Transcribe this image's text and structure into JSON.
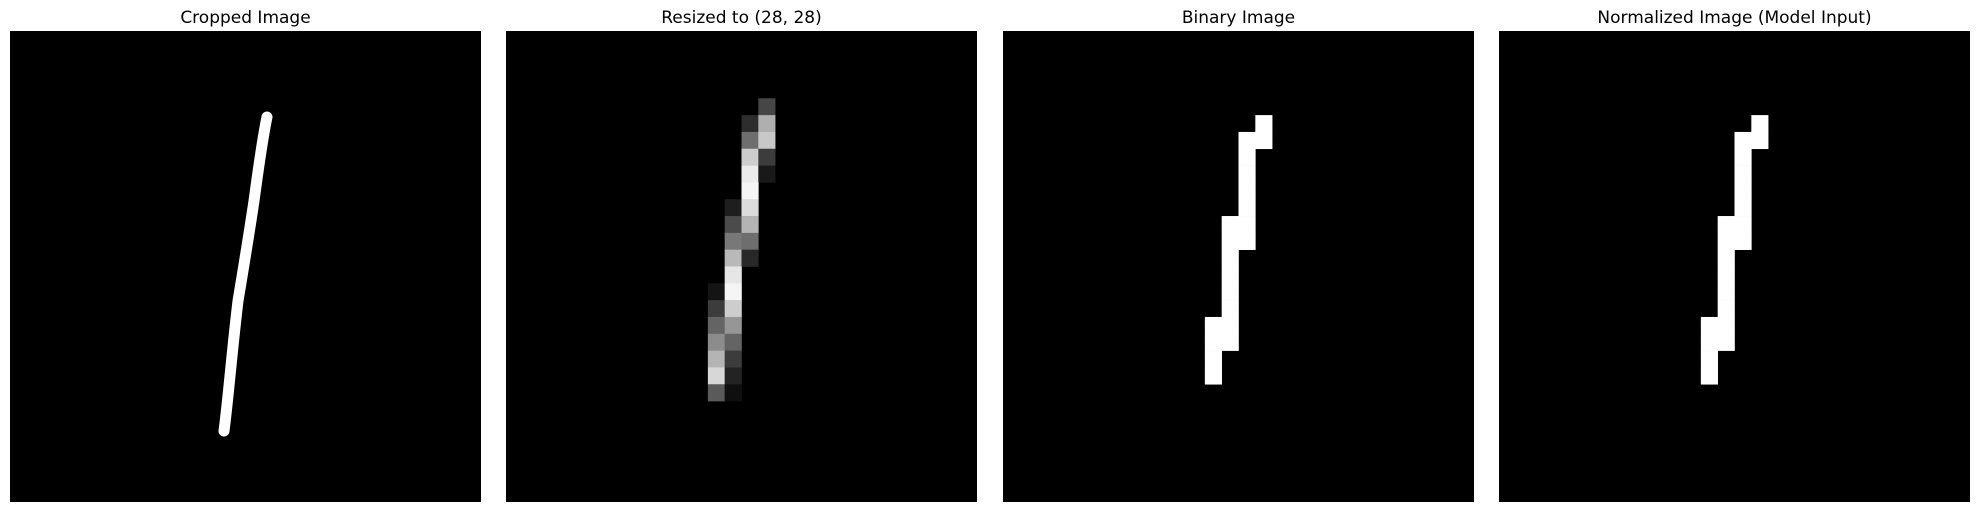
{
  "figure": {
    "background": "#ffffff",
    "canvas_color": "#000000",
    "ink_color": "#ffffff"
  },
  "panels": [
    {
      "title": "Cropped Image"
    },
    {
      "title": "Resized to (28, 28)"
    },
    {
      "title": "Binary Image"
    },
    {
      "title": "Normalized Image (Model Input)"
    }
  ]
}
